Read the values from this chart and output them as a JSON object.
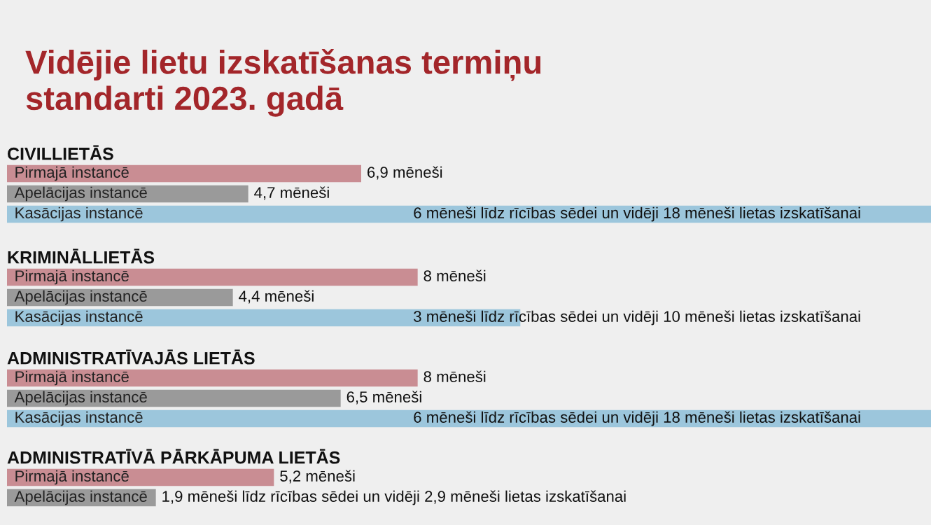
{
  "chart_data": [
    {
      "type": "bar",
      "orientation": "horizontal",
      "xlim": [
        0,
        18
      ],
      "title": "Vidējie lietu izskatīšanas termiņu\nstandarti 2023. gadā",
      "subtitle": "CIVILLIETĀS",
      "categories": [
        "Pirmajā instancē",
        "Apelācijas instancē",
        "Kasācijas instancē"
      ],
      "values": [
        6.9,
        4.7,
        18
      ],
      "colors": [
        "#c98d93",
        "#9a9a9a",
        "#9cc6dc"
      ],
      "value_labels": [
        "6,9 mēneši",
        "4,7 mēneši",
        "6 mēneši līdz rīcības sēdei un vidēji 18 mēneši lietas izskatīšanai"
      ]
    },
    {
      "type": "bar",
      "orientation": "horizontal",
      "xlim": [
        0,
        18
      ],
      "subtitle": "KRIMINĀLLIETĀS",
      "categories": [
        "Pirmajā instancē",
        "Apelācijas instancē",
        "Kasācijas instancē"
      ],
      "values": [
        8,
        4.4,
        10
      ],
      "colors": [
        "#c98d93",
        "#9a9a9a",
        "#9cc6dc"
      ],
      "value_labels": [
        "8 mēneši",
        "4,4 mēneši",
        "3 mēneši līdz rīcības sēdei un vidēji 10 mēneši lietas izskatīšanai"
      ]
    },
    {
      "type": "bar",
      "orientation": "horizontal",
      "xlim": [
        0,
        18
      ],
      "subtitle": "ADMINISTRATĪVAJĀS LIETĀS",
      "categories": [
        "Pirmajā instancē",
        "Apelācijas instancē",
        "Kasācijas instancē"
      ],
      "values": [
        8,
        6.5,
        18
      ],
      "colors": [
        "#c98d93",
        "#9a9a9a",
        "#9cc6dc"
      ],
      "value_labels": [
        "8 mēneši",
        "6,5 mēneši",
        "6 mēneši līdz rīcības sēdei un vidēji 18 mēneši lietas izskatīšanai"
      ]
    },
    {
      "type": "bar",
      "orientation": "horizontal",
      "xlim": [
        0,
        18
      ],
      "subtitle": "ADMINISTRATĪVĀ PĀRKĀPUMA LIETĀS",
      "categories": [
        "Pirmajā instancē",
        "Apelācijas instancē"
      ],
      "values": [
        5.2,
        2.9
      ],
      "colors": [
        "#c98d93",
        "#9a9a9a"
      ],
      "value_labels": [
        "5,2 mēneši",
        "1,9 mēneši līdz rīcības sēdei un vidēji 2,9 mēneši lietas izskatīšanai"
      ]
    }
  ]
}
